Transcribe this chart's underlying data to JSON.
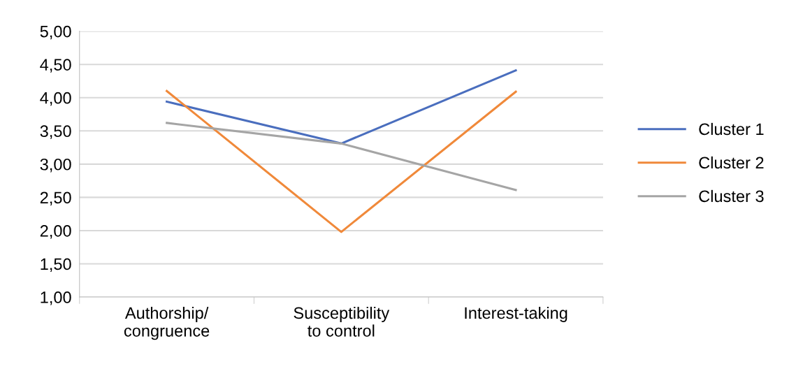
{
  "chart_data": {
    "type": "line",
    "categories": [
      "Authorship/\ncongruence",
      "Susceptibility\nto control",
      "Interest-taking"
    ],
    "series": [
      {
        "name": "Cluster 1",
        "color": "#4a6ebe",
        "values": [
          3.94,
          3.31,
          4.41
        ]
      },
      {
        "name": "Cluster 2",
        "color": "#f0893a",
        "values": [
          4.1,
          1.98,
          4.09
        ]
      },
      {
        "name": "Cluster 3",
        "color": "#a5a5a5",
        "values": [
          3.62,
          3.31,
          2.61
        ]
      }
    ],
    "ylim": [
      1,
      5
    ],
    "yticks": [
      {
        "value": 1,
        "label": "1,00"
      },
      {
        "value": 1.5,
        "label": "1,50"
      },
      {
        "value": 2,
        "label": "2,00"
      },
      {
        "value": 2.5,
        "label": "2,50"
      },
      {
        "value": 3,
        "label": "3,00"
      },
      {
        "value": 3.5,
        "label": "3,50"
      },
      {
        "value": 4,
        "label": "4,00"
      },
      {
        "value": 4.5,
        "label": "4,50"
      },
      {
        "value": 5,
        "label": "5,00"
      }
    ],
    "grid": "y",
    "legend": "right",
    "marker": "none",
    "line_style": "solid"
  }
}
